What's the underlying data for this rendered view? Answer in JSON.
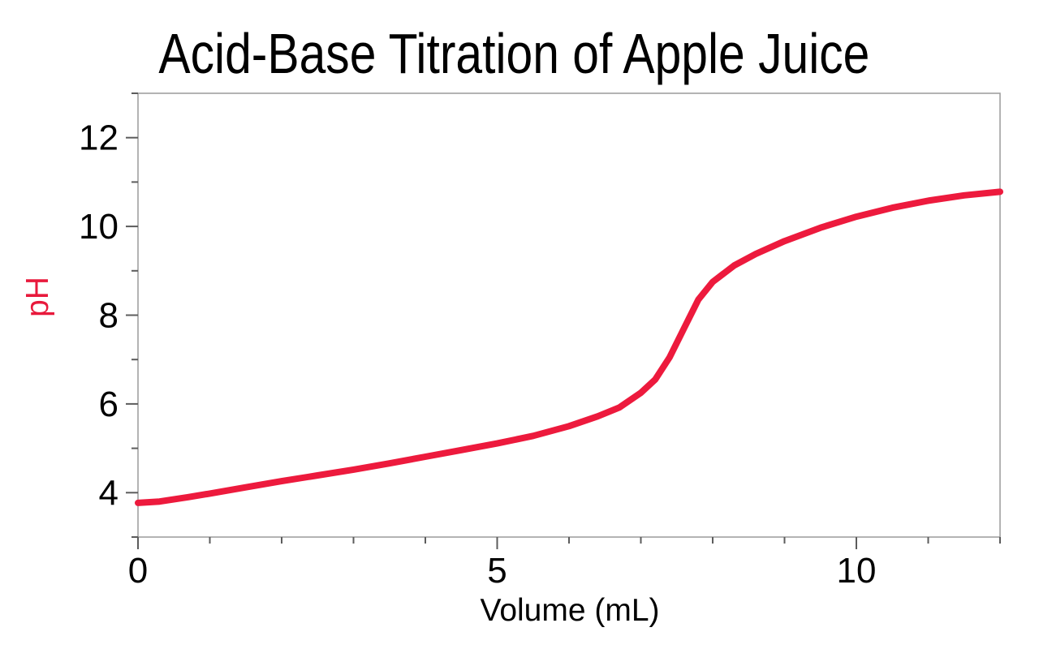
{
  "chart_data": {
    "type": "line",
    "title": "Acid-Base Titration of Apple Juice",
    "xlabel": "Volume (mL)",
    "ylabel": "pH",
    "xlim": [
      0,
      12
    ],
    "ylim": [
      3,
      13
    ],
    "grid": false,
    "legend": "none",
    "x_ticks": {
      "minor_every": 1,
      "majors": [
        0,
        5,
        10
      ],
      "major_labels": [
        "0",
        "5",
        "10"
      ]
    },
    "y_ticks": {
      "minor_every": 1,
      "majors": [
        4,
        6,
        8,
        10,
        12
      ],
      "major_labels": [
        "4",
        "6",
        "8",
        "10",
        "12"
      ]
    },
    "colors": {
      "curve": "#ED1A3D",
      "ylabel_text": "#E8193C",
      "frame": "#9a9a9a",
      "tick": "#5c5c5c",
      "text": "#000000"
    },
    "series": [
      {
        "name": "pH",
        "color": "#ED1A3D",
        "points": [
          [
            0,
            3.77
          ],
          [
            0.3,
            3.8
          ],
          [
            0.7,
            3.9
          ],
          [
            1,
            3.98
          ],
          [
            1.5,
            4.12
          ],
          [
            2,
            4.26
          ],
          [
            2.5,
            4.39
          ],
          [
            3,
            4.52
          ],
          [
            3.5,
            4.66
          ],
          [
            4,
            4.81
          ],
          [
            4.5,
            4.96
          ],
          [
            5,
            5.11
          ],
          [
            5.5,
            5.28
          ],
          [
            6,
            5.5
          ],
          [
            6.4,
            5.72
          ],
          [
            6.7,
            5.92
          ],
          [
            7,
            6.25
          ],
          [
            7.2,
            6.55
          ],
          [
            7.4,
            7.05
          ],
          [
            7.6,
            7.7
          ],
          [
            7.8,
            8.35
          ],
          [
            8,
            8.75
          ],
          [
            8.3,
            9.12
          ],
          [
            8.6,
            9.38
          ],
          [
            9,
            9.67
          ],
          [
            9.5,
            9.97
          ],
          [
            10,
            10.22
          ],
          [
            10.5,
            10.42
          ],
          [
            11,
            10.58
          ],
          [
            11.5,
            10.7
          ],
          [
            12,
            10.78
          ]
        ]
      }
    ]
  }
}
